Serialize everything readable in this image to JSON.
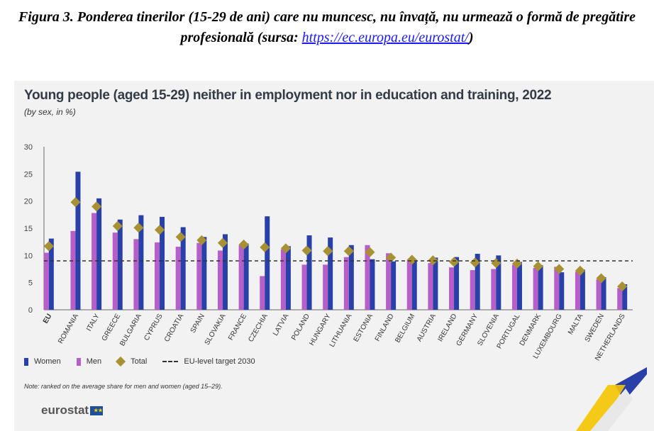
{
  "caption": {
    "text": "Figura 3. Ponderea tinerilor (15-29 de ani) care nu muncesc, nu învață, nu urmează o formă de pregătire profesională (sursa: ",
    "link": "https://ec.europa.eu/eurostat/",
    "close": ")"
  },
  "colors": {
    "women": "#2840a8",
    "men": "#b65fc8",
    "total": "#a89134",
    "target": "#333333",
    "background": "#f2f2f2"
  },
  "legend": {
    "women": "Women",
    "men": "Men",
    "total": "Total",
    "target": "EU-level target 2030"
  },
  "note": "Note: ranked on the average share for men and women (aged 15–29).",
  "logo": {
    "text": "eurostat"
  },
  "chart_data": {
    "type": "bar",
    "title": "Young people (aged 15-29) neither in employment nor in education and training, 2022",
    "subtitle": "(by sex, in %)",
    "ylim": [
      0,
      30
    ],
    "yticks": [
      0,
      5,
      10,
      15,
      20,
      25,
      30
    ],
    "target": 9,
    "categories": [
      "EU",
      "ROMANIA",
      "ITALY",
      "GREECE",
      "BULGARIA",
      "CYPRUS",
      "CROATIA",
      "SPAIN",
      "SLOVAKIA",
      "FRANCE",
      "CZECHIA",
      "LATVIA",
      "POLAND",
      "HUNGARY",
      "LITHUANIA",
      "ESTONIA",
      "FINLAND",
      "BELGIUM",
      "AUSTRIA",
      "IRELAND",
      "GERMANY",
      "SLOVENIA",
      "PORTUGAL",
      "DENMARK",
      "LUXEMBOURG",
      "MALTA",
      "SWEDEN",
      "NETHERLANDS"
    ],
    "series": [
      {
        "name": "Men",
        "values": [
          10.5,
          14.5,
          17.8,
          14.2,
          13,
          12.4,
          11.6,
          12.3,
          10.9,
          11.9,
          6.2,
          11.1,
          8.3,
          8.3,
          9.7,
          11.9,
          10.4,
          9.2,
          8.6,
          7.8,
          7.3,
          7.5,
          8.3,
          7.7,
          7.9,
          7.0,
          5.6,
          4.0
        ]
      },
      {
        "name": "Women",
        "values": [
          13.1,
          25.4,
          20.5,
          16.6,
          17.4,
          17.1,
          15.2,
          13.4,
          13.9,
          12.2,
          17.2,
          11.7,
          13.7,
          13.3,
          11.9,
          9.3,
          8.9,
          9.2,
          9.6,
          9.7,
          10.3,
          10.0,
          8.8,
          8.2,
          6.9,
          7.4,
          6.0,
          4.7
        ]
      },
      {
        "name": "Total",
        "values": [
          11.7,
          19.8,
          19.0,
          15.4,
          15.1,
          14.7,
          13.4,
          12.8,
          12.3,
          12.0,
          11.5,
          11.3,
          10.9,
          10.8,
          10.8,
          10.6,
          9.6,
          9.2,
          9.1,
          8.8,
          8.7,
          8.6,
          8.5,
          8.0,
          7.5,
          7.2,
          5.8,
          4.3
        ]
      }
    ]
  }
}
